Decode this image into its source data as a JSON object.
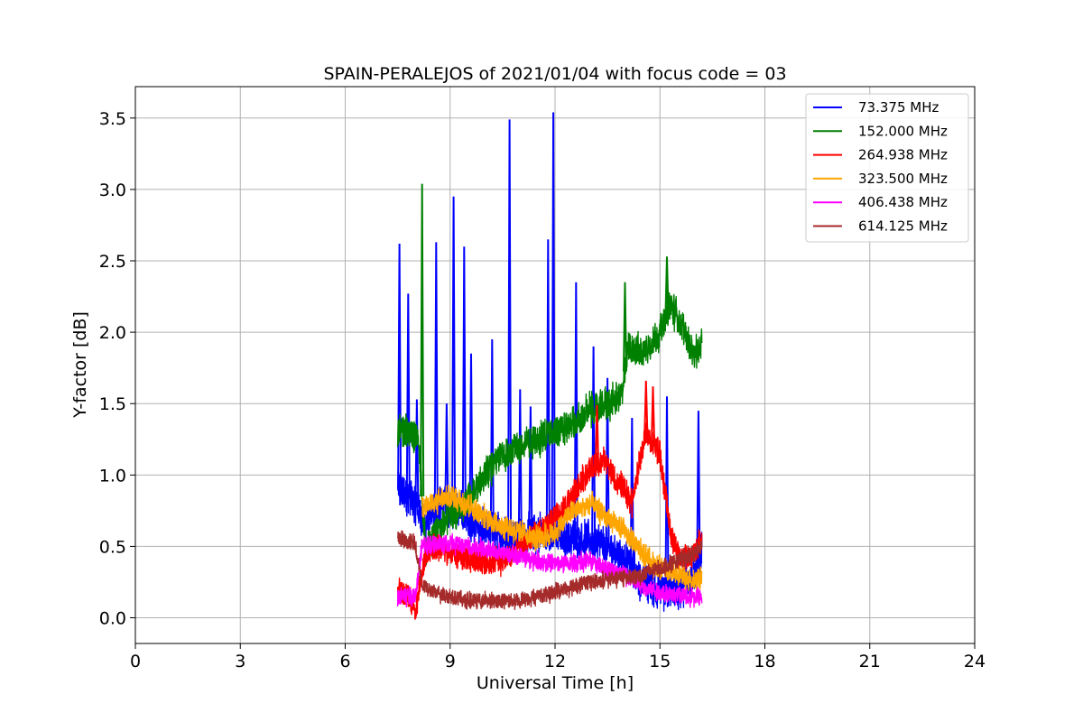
{
  "chart_data": {
    "type": "line",
    "title": "SPAIN-PERALEJOS of 2021/01/04 with focus code = 03",
    "xlabel": "Universal Time [h]",
    "ylabel": "Y-factor [dB]",
    "xlim": [
      0,
      24
    ],
    "ylim": [
      -0.18,
      3.72
    ],
    "xticks": [
      0,
      3,
      6,
      9,
      12,
      15,
      18,
      21,
      24
    ],
    "xtick_labels": [
      "0",
      "3",
      "6",
      "9",
      "12",
      "15",
      "18",
      "21",
      "24"
    ],
    "yticks": [
      0.0,
      0.5,
      1.0,
      1.5,
      2.0,
      2.5,
      3.0,
      3.5
    ],
    "ytick_labels": [
      "0.0",
      "0.5",
      "1.0",
      "1.5",
      "2.0",
      "2.5",
      "3.0",
      "3.5"
    ],
    "grid": true,
    "legend_position": "top-right",
    "series": [
      {
        "name": " 73.375 MHz",
        "color": "#0000ff",
        "noise": 0.12,
        "x": [
          7.5,
          7.8,
          8.0,
          8.3,
          8.6,
          9.0,
          9.5,
          10.0,
          10.5,
          11.0,
          11.5,
          12.0,
          12.5,
          13.0,
          13.5,
          14.0,
          14.5,
          15.0,
          15.5,
          16.0,
          16.2
        ],
        "y": [
          0.9,
          0.85,
          0.8,
          0.65,
          0.75,
          0.8,
          0.7,
          0.6,
          0.6,
          0.55,
          0.6,
          0.6,
          0.55,
          0.55,
          0.5,
          0.4,
          0.25,
          0.2,
          0.2,
          0.3,
          0.5
        ],
        "spikes": [
          [
            7.55,
            2.62
          ],
          [
            7.8,
            2.27
          ],
          [
            8.05,
            1.53
          ],
          [
            8.6,
            2.63
          ],
          [
            8.9,
            1.5
          ],
          [
            9.1,
            2.95
          ],
          [
            9.4,
            2.6
          ],
          [
            9.6,
            1.85
          ],
          [
            10.2,
            1.95
          ],
          [
            10.7,
            3.49
          ],
          [
            11.0,
            1.6
          ],
          [
            11.3,
            1.48
          ],
          [
            11.8,
            2.65
          ],
          [
            11.95,
            3.54
          ],
          [
            12.6,
            2.35
          ],
          [
            13.1,
            1.9
          ],
          [
            13.5,
            1.68
          ],
          [
            14.2,
            1.4
          ],
          [
            15.2,
            1.55
          ],
          [
            16.1,
            1.45
          ]
        ]
      },
      {
        "name": "152.000 MHz",
        "color": "#008000",
        "noise": 0.1,
        "x": [
          7.5,
          7.8,
          8.1,
          8.3,
          8.6,
          9.0,
          9.5,
          10.0,
          10.5,
          11.0,
          11.5,
          12.0,
          12.5,
          13.0,
          13.5,
          13.9,
          14.1,
          14.5,
          15.0,
          15.3,
          15.6,
          16.0,
          16.2
        ],
        "y": [
          1.3,
          1.3,
          1.25,
          0.45,
          0.6,
          0.7,
          0.8,
          1.0,
          1.15,
          1.2,
          1.25,
          1.3,
          1.35,
          1.45,
          1.5,
          1.55,
          1.9,
          1.85,
          2.0,
          2.2,
          2.05,
          1.85,
          1.9
        ],
        "spikes": [
          [
            8.2,
            3.04
          ],
          [
            15.2,
            2.53
          ],
          [
            14.0,
            2.35
          ]
        ]
      },
      {
        "name": "264.938 MHz",
        "color": "#ff0000",
        "noise": 0.08,
        "x": [
          7.5,
          7.8,
          8.0,
          8.3,
          8.7,
          9.0,
          9.5,
          10.0,
          10.5,
          11.0,
          11.5,
          12.0,
          12.5,
          13.0,
          13.4,
          13.8,
          14.2,
          14.6,
          15.0,
          15.3,
          15.6,
          16.0,
          16.2
        ],
        "y": [
          0.2,
          0.15,
          0.05,
          0.45,
          0.5,
          0.45,
          0.42,
          0.38,
          0.4,
          0.5,
          0.6,
          0.7,
          0.85,
          1.05,
          1.1,
          0.95,
          0.8,
          1.3,
          1.15,
          0.6,
          0.4,
          0.45,
          0.55
        ],
        "spikes": [
          [
            13.2,
            1.49
          ],
          [
            14.6,
            1.66
          ],
          [
            14.8,
            1.62
          ]
        ]
      },
      {
        "name": "323.500 MHz",
        "color": "#ffa500",
        "noise": 0.07,
        "x": [
          8.2,
          8.5,
          9.0,
          9.5,
          10.0,
          10.5,
          11.0,
          11.5,
          12.0,
          12.5,
          13.0,
          13.5,
          14.0,
          14.5,
          15.0,
          15.5,
          16.0,
          16.2
        ],
        "y": [
          0.78,
          0.8,
          0.85,
          0.8,
          0.7,
          0.65,
          0.6,
          0.55,
          0.6,
          0.75,
          0.8,
          0.7,
          0.6,
          0.45,
          0.35,
          0.3,
          0.25,
          0.3
        ],
        "spikes": []
      },
      {
        "name": "406.438 MHz",
        "color": "#ff00ff",
        "noise": 0.055,
        "x": [
          7.5,
          8.0,
          8.2,
          8.5,
          9.0,
          9.5,
          10.0,
          10.5,
          11.0,
          11.5,
          12.0,
          12.5,
          13.0,
          13.5,
          14.0,
          14.5,
          15.0,
          15.5,
          16.0,
          16.2
        ],
        "y": [
          0.15,
          0.15,
          0.5,
          0.52,
          0.52,
          0.5,
          0.48,
          0.45,
          0.43,
          0.4,
          0.38,
          0.38,
          0.4,
          0.35,
          0.3,
          0.22,
          0.18,
          0.16,
          0.15,
          0.15
        ],
        "spikes": []
      },
      {
        "name": "614.125 MHz",
        "color": "#a52a2a",
        "noise": 0.05,
        "x": [
          7.5,
          8.0,
          8.2,
          8.5,
          9.0,
          9.5,
          10.0,
          10.5,
          11.0,
          11.5,
          12.0,
          12.5,
          13.0,
          13.5,
          14.0,
          14.5,
          15.0,
          15.5,
          16.0,
          16.2
        ],
        "y": [
          0.55,
          0.52,
          0.22,
          0.18,
          0.15,
          0.12,
          0.12,
          0.12,
          0.12,
          0.15,
          0.18,
          0.22,
          0.25,
          0.27,
          0.28,
          0.3,
          0.35,
          0.4,
          0.45,
          0.5
        ],
        "spikes": []
      }
    ]
  }
}
